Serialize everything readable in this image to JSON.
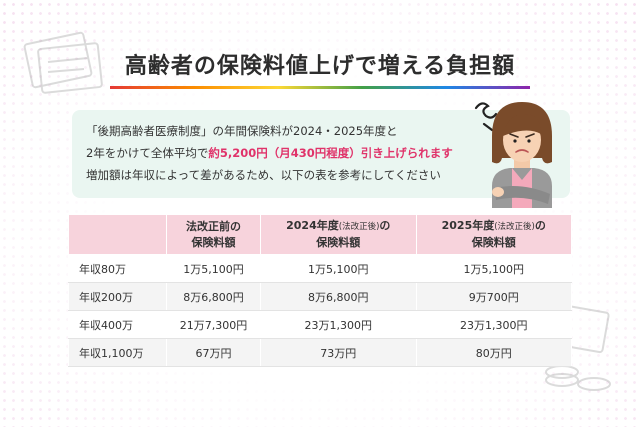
{
  "title": "高齢者の保険料値上げで増える負担額",
  "info": {
    "line1": "「後期高齢者医療制度」の年間保険料が2024・2025年度と",
    "line2_before": "2年をかけて全体平均で",
    "line2_highlight": "約5,200円（月430円程度）引き上げられます",
    "line3": "増加額は年収によって差があるため、以下の表を参考にしてください"
  },
  "table": {
    "headers": [
      {
        "main": "法改正前の",
        "small": "",
        "tail": "",
        "line2": "保険料額"
      },
      {
        "main": "2024年度",
        "small": "(法改正後)",
        "tail": "の",
        "line2": "保険料額"
      },
      {
        "main": "2025年度",
        "small": "(法改正後)",
        "tail": "の",
        "line2": "保険料額"
      }
    ],
    "rows": [
      {
        "label": "年収80万",
        "values": [
          "1万5,100円",
          "1万5,100円",
          "1万5,100円"
        ]
      },
      {
        "label": "年収200万",
        "values": [
          "8万6,800円",
          "8万6,800円",
          "9万700円"
        ]
      },
      {
        "label": "年収400万",
        "values": [
          "21万7,300円",
          "23万1,300円",
          "23万1,300円"
        ]
      },
      {
        "label": "年収1,100万",
        "values": [
          "67万円",
          "73万円",
          "80万円"
        ]
      }
    ]
  },
  "colors": {
    "accent_pink": "#e0336a",
    "header_bg": "#f7d3dc",
    "info_bg": "#eaf6f1"
  },
  "icons": {
    "person": "worried-elderly-woman-illustration",
    "worry": "worry-scribble-icon"
  }
}
